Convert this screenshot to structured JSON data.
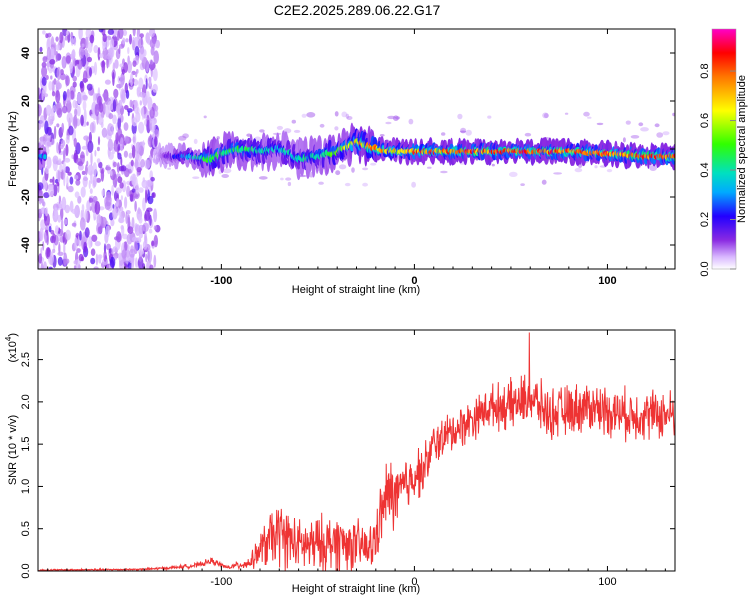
{
  "title": "C2E2.2025.289.06.22.G17",
  "chart_data": [
    {
      "type": "heatmap",
      "name": "spectrogram",
      "xlabel": "Height of straight line (km)",
      "ylabel": "Frequency (Hz)",
      "xlim": [
        -195,
        135
      ],
      "ylim": [
        -50,
        50
      ],
      "x_ticks": [
        -100,
        0,
        100
      ],
      "x_tick_labels": [
        "-100",
        "0",
        "100"
      ],
      "y_ticks": [
        40,
        20,
        0,
        -20,
        -40
      ],
      "y_tick_labels": [
        "40",
        "20",
        "0",
        "-20",
        "-40"
      ],
      "colorbar": {
        "label": "Normalized spectral amplitude",
        "range": [
          0,
          0.97
        ],
        "ticks": [
          0.0,
          0.2,
          0.4,
          0.6,
          0.8
        ],
        "tick_labels": [
          "0.0",
          "0.2",
          "0.4",
          "0.6",
          "0.8"
        ],
        "colormap": [
          "#ffffff",
          "#8a2be2",
          "#0000ff",
          "#00c8ff",
          "#00e08a",
          "#40ff00",
          "#ffff00",
          "#ff8000",
          "#ff0000",
          "#ff00c0"
        ]
      },
      "ridge_profile": {
        "x": [
          -195,
          -135,
          -120,
          -105,
          -95,
          -80,
          -70,
          -60,
          -50,
          -40,
          -30,
          -20,
          -10,
          0,
          20,
          40,
          60,
          80,
          100,
          120,
          135
        ],
        "frequency": [
          -3,
          -3,
          -3,
          -4,
          0,
          -1,
          0,
          -4,
          -3,
          -1,
          3,
          0,
          -1,
          -1,
          -1,
          -1,
          -1,
          -1,
          -2,
          -3,
          -3
        ],
        "amplitude": [
          0.35,
          0.0,
          0.3,
          0.55,
          0.5,
          0.45,
          0.4,
          0.4,
          0.45,
          0.55,
          0.7,
          0.8,
          0.7,
          0.85,
          0.85,
          0.85,
          0.9,
          0.85,
          0.85,
          0.9,
          0.85
        ]
      },
      "noise_region_x": [
        -195,
        -133
      ]
    },
    {
      "type": "line",
      "name": "snr",
      "xlabel": "Height of straight line (km)",
      "ylabel": "SNR (10 * v/v)",
      "scale_note": "(x10",
      "scale_exponent": "4",
      "xlim": [
        -195,
        135
      ],
      "ylim": [
        0,
        2.85
      ],
      "x_ticks": [
        -100,
        0,
        100
      ],
      "x_tick_labels": [
        "-100",
        "0",
        "100"
      ],
      "y_ticks": [
        0.0,
        0.5,
        1.0,
        1.5,
        2.0,
        2.5
      ],
      "y_tick_labels": [
        "0.0",
        "0.5",
        "1.0",
        "1.5",
        "2.0",
        "2.5"
      ],
      "line_color": "#ee3333",
      "envelope": {
        "x": [
          -195,
          -140,
          -125,
          -112,
          -105,
          -97,
          -85,
          -80,
          -75,
          -70,
          -60,
          -50,
          -40,
          -30,
          -22,
          -18,
          -14,
          -8,
          -3,
          0,
          5,
          10,
          20,
          30,
          40,
          50,
          60,
          70,
          80,
          90,
          100,
          110,
          120,
          135
        ],
        "mean": [
          0.01,
          0.02,
          0.04,
          0.07,
          0.12,
          0.04,
          0.1,
          0.25,
          0.35,
          0.45,
          0.3,
          0.3,
          0.35,
          0.3,
          0.25,
          0.6,
          0.9,
          0.9,
          1.05,
          1.15,
          1.2,
          1.5,
          1.65,
          1.8,
          1.95,
          1.95,
          2.05,
          1.85,
          1.9,
          1.95,
          1.9,
          1.85,
          1.85,
          1.85
        ],
        "spread": [
          0.01,
          0.01,
          0.02,
          0.03,
          0.04,
          0.02,
          0.08,
          0.2,
          0.35,
          0.4,
          0.3,
          0.35,
          0.35,
          0.3,
          0.3,
          0.35,
          0.45,
          0.4,
          0.35,
          0.3,
          0.3,
          0.25,
          0.25,
          0.25,
          0.25,
          0.3,
          0.3,
          0.3,
          0.3,
          0.3,
          0.3,
          0.3,
          0.3,
          0.3
        ]
      },
      "peak_value": 2.82
    }
  ]
}
